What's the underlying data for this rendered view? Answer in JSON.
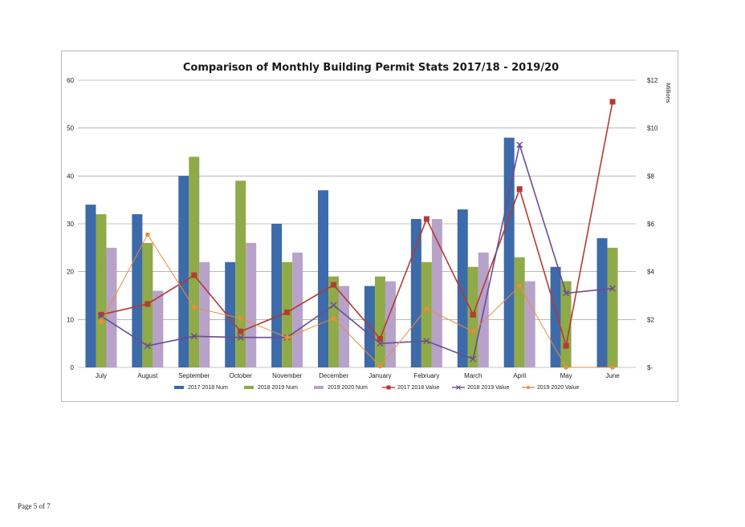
{
  "page": {
    "footer": "Page 5 of 7"
  },
  "chart_data": {
    "type": "bar",
    "title": "Comparison of Monthly Building Permit Stats 2017/18 - 2019/20",
    "categories": [
      "July",
      "August",
      "September",
      "October",
      "November",
      "December",
      "January",
      "February",
      "March",
      "April",
      "May",
      "June"
    ],
    "y_left": {
      "min": 0,
      "max": 60,
      "ticks": [
        "0",
        "10",
        "20",
        "30",
        "40",
        "50",
        "60"
      ]
    },
    "y_right": {
      "min": 0,
      "max": 12,
      "unit_label": "Millions",
      "ticks": [
        "$-",
        "$2",
        "$4",
        "$6",
        "$8",
        "$10",
        "$12"
      ]
    },
    "grid": true,
    "legend_position": "bottom",
    "bar_series": [
      {
        "name": "2017 2018 Num",
        "color": "#3d6aa8",
        "values": [
          34,
          32,
          40,
          22,
          30,
          37,
          17,
          31,
          33,
          48,
          21,
          27
        ]
      },
      {
        "name": "2018 2019 Num",
        "color": "#8faa48",
        "values": [
          32,
          26,
          44,
          39,
          22,
          19,
          19,
          22,
          21,
          23,
          18,
          25
        ]
      },
      {
        "name": "2019 2020 Num",
        "color": "#b7a2c9",
        "values": [
          25,
          16,
          22,
          26,
          24,
          17,
          18,
          31,
          24,
          18,
          null,
          null
        ]
      }
    ],
    "line_series": [
      {
        "name": "2017 2018 Value",
        "color": "#b23b36",
        "marker": "square",
        "values": [
          2.2,
          2.65,
          3.85,
          1.5,
          2.3,
          3.45,
          1.2,
          6.2,
          2.2,
          7.45,
          0.9,
          11.1
        ]
      },
      {
        "name": "2018 2019 Value",
        "color": "#6a4c93",
        "marker": "x",
        "values": [
          2.15,
          0.9,
          1.3,
          1.25,
          1.25,
          2.6,
          1.0,
          1.1,
          0.35,
          9.3,
          3.1,
          3.3
        ]
      },
      {
        "name": "2019 2020 Value",
        "color": "#f08c3a",
        "marker": "circle",
        "values": [
          1.9,
          5.55,
          2.5,
          2.05,
          1.25,
          2.05,
          0.05,
          2.45,
          1.5,
          3.4,
          0.0,
          0.0
        ]
      }
    ]
  }
}
